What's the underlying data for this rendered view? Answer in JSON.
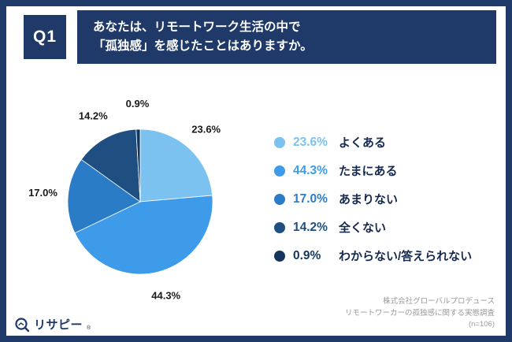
{
  "header": {
    "q_label": "Q1",
    "question_line1": "あなたは、リモートワーク生活の中で",
    "question_line2": "「孤独感」を感じたことはありますか。"
  },
  "chart_data": {
    "type": "pie",
    "title": "あなたは、リモートワーク生活の中で「孤独感」を感じたことはありますか。",
    "start_angle_deg": 0,
    "direction": "clockwise",
    "legend_position": "right",
    "slices": [
      {
        "label": "よくある",
        "value_pct": 23.6,
        "display": "23.6%",
        "color": "#7CC2F0"
      },
      {
        "label": "たまにある",
        "value_pct": 44.3,
        "display": "44.3%",
        "color": "#3E9BE9"
      },
      {
        "label": "あまりない",
        "value_pct": 17.0,
        "display": "17.0%",
        "color": "#2B7CC7"
      },
      {
        "label": "全くない",
        "value_pct": 14.2,
        "display": "14.2%",
        "color": "#1F4F80"
      },
      {
        "label": "わからない/答えられない",
        "value_pct": 0.9,
        "display": "0.9%",
        "color": "#16355C"
      }
    ]
  },
  "footer": {
    "logo_text": "リサピー",
    "logo_reg_mark": "®",
    "source_line1": "株式会社グローバルプロデュース",
    "source_line2": "リモートワーカーの孤独感に関する実態調査",
    "source_line3": "(n=106)"
  },
  "colors": {
    "frame": "#1F3968",
    "header_bg": "#1F3968",
    "header_text": "#FFFFFF",
    "legend_label_text": "#16294E",
    "source_text": "#9A9A9A"
  }
}
